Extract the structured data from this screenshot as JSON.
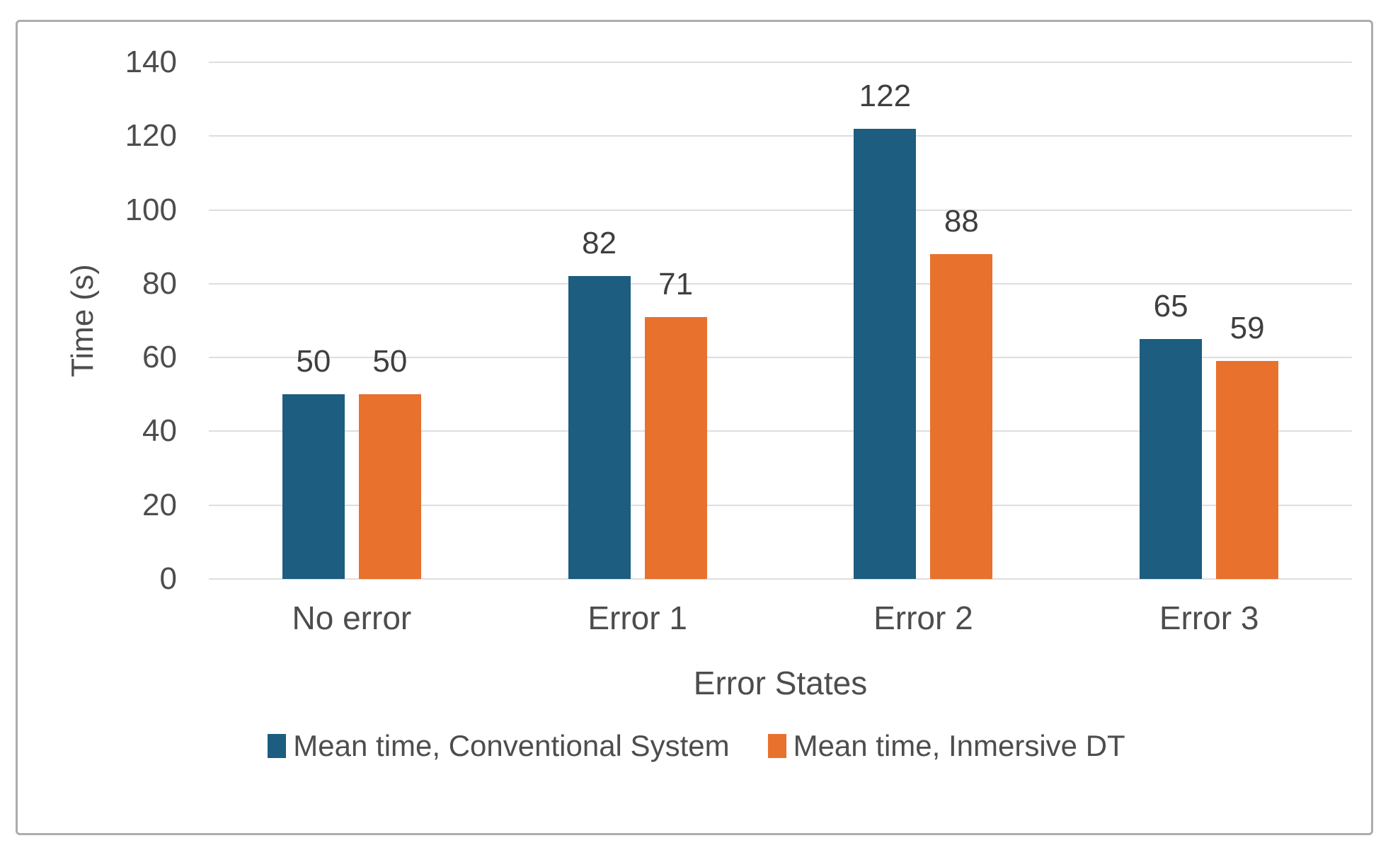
{
  "chart_data": {
    "type": "bar",
    "categories": [
      "No error",
      "Error 1",
      "Error 2",
      "Error 3"
    ],
    "series": [
      {
        "name": "Mean time, Conventional System",
        "color": "#1C5D80",
        "values": [
          50,
          82,
          122,
          65
        ]
      },
      {
        "name": "Mean time, Inmersive DT",
        "color": "#E8712E",
        "values": [
          50,
          71,
          88,
          59
        ]
      }
    ],
    "title": "",
    "xlabel": "Error States",
    "ylabel": "Time (s)",
    "ylim": [
      0,
      140
    ],
    "ytick_step": 20,
    "yticks": [
      140,
      120,
      100,
      80,
      60,
      40,
      20,
      0
    ],
    "grid": true,
    "data_labels": true,
    "legend_position": "bottom"
  },
  "colors": {
    "series1": "#1C5D80",
    "series2": "#E8712E",
    "gridline": "#DEDEDE",
    "tick_label": "#4d4d4d",
    "data_label": "#3f3f3f",
    "frame_border": "#ACACAC",
    "background": "#FFFFFF"
  }
}
